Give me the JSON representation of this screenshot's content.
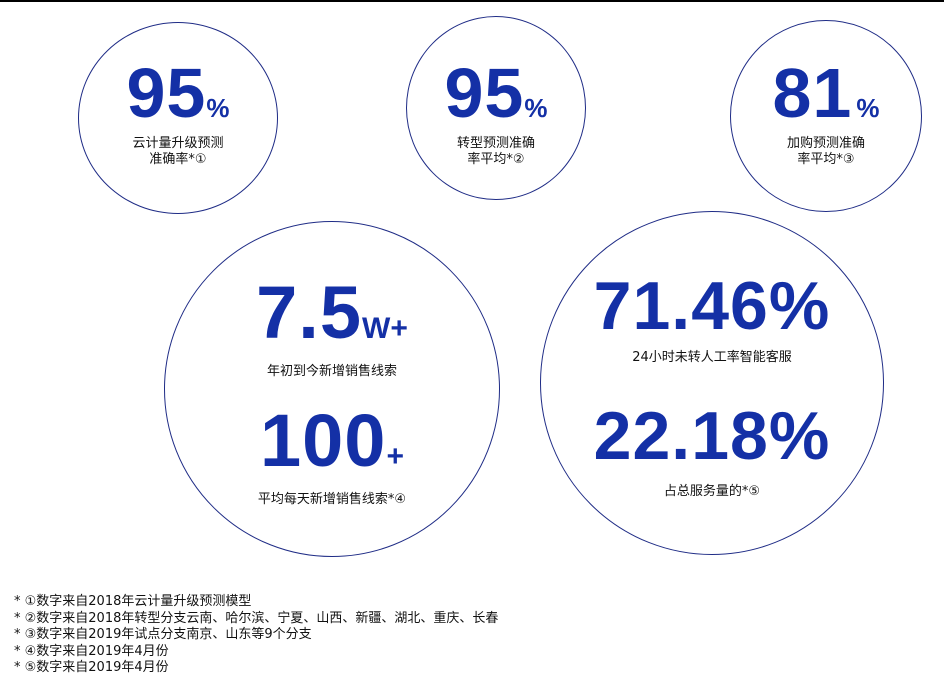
{
  "stats": {
    "s1": {
      "value": "95",
      "unit": "%",
      "label_line1": "云计量升级预测",
      "label_line2": "准确率*①"
    },
    "s2": {
      "value": "95",
      "unit": "%",
      "label_line1": "转型预测准确",
      "label_line2": "率平均*②"
    },
    "s3": {
      "value": "81",
      "unit": "%",
      "label_line1": "加购预测准确",
      "label_line2": "率平均*③"
    },
    "s4": {
      "value": "7.5",
      "unit": "W+",
      "label": "年初到今新增销售线索"
    },
    "s5": {
      "value": "100",
      "unit": "+",
      "label": "平均每天新增销售线索*④"
    },
    "s6": {
      "value": "71.46%",
      "label": "24小时未转人工率智能客服"
    },
    "s7": {
      "value": "22.18%",
      "label": "占总服务量的*⑤"
    }
  },
  "footnotes": [
    "* ①数字来自2018年云计量升级预测模型",
    "* ②数字来自2018年转型分支云南、哈尔滨、宁夏、山西、新疆、湖北、重庆、长春",
    "* ③数字来自2019年试点分支南京、山东等9个分支",
    "* ④数字来自2019年4月份",
    "* ⑤数字来自2019年4月份"
  ],
  "colors": {
    "accent": "#1430a6",
    "circle_border": "#1f2c86"
  }
}
